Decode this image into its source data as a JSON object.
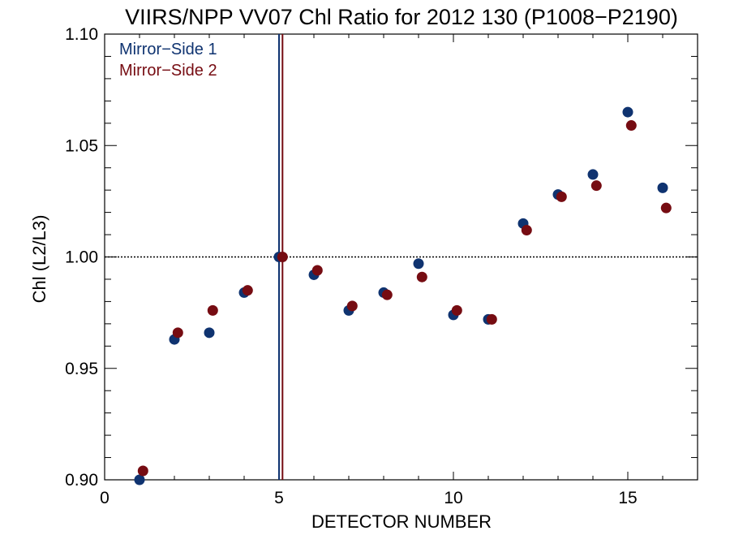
{
  "chart_data": {
    "type": "scatter",
    "title": "VIIRS/NPP VV07 Chl Ratio for 2012 130 (P1008−P2190)",
    "xlabel": "DETECTOR NUMBER",
    "ylabel": "Chl (L2/L3)",
    "xlim": [
      0,
      17
    ],
    "ylim": [
      0.9,
      1.1
    ],
    "xticks": [
      0,
      5,
      10,
      15
    ],
    "xtick_labels": [
      "0",
      "5",
      "10",
      "15"
    ],
    "yticks": [
      0.9,
      0.95,
      1.0,
      1.05,
      1.1
    ],
    "ytick_labels": [
      "0.90",
      "0.95",
      "1.00",
      "1.05",
      "1.10"
    ],
    "reference_line_y": 1.0,
    "vertical_lines_x": [
      5,
      5.1
    ],
    "grid": false,
    "legend_position": "top-left",
    "series": [
      {
        "name": "Mirror−Side 1",
        "color": "#0f3370",
        "x": [
          1,
          2,
          3,
          4,
          5,
          6,
          7,
          8,
          9,
          10,
          11,
          12,
          13,
          14,
          15,
          16
        ],
        "y": [
          0.9,
          0.963,
          0.966,
          0.984,
          1.0,
          0.992,
          0.976,
          0.984,
          0.997,
          0.974,
          0.972,
          1.015,
          1.028,
          1.037,
          1.065,
          1.031
        ]
      },
      {
        "name": "Mirror−Side 2",
        "color": "#760c12",
        "x": [
          1.1,
          2.1,
          3.1,
          4.1,
          5.1,
          6.1,
          7.1,
          8.1,
          9.1,
          10.1,
          11.1,
          12.1,
          13.1,
          14.1,
          15.1,
          16.1
        ],
        "y": [
          0.904,
          0.966,
          0.976,
          0.985,
          1.0,
          0.994,
          0.978,
          0.983,
          0.991,
          0.976,
          0.972,
          1.012,
          1.027,
          1.032,
          1.059,
          1.022
        ]
      }
    ]
  }
}
